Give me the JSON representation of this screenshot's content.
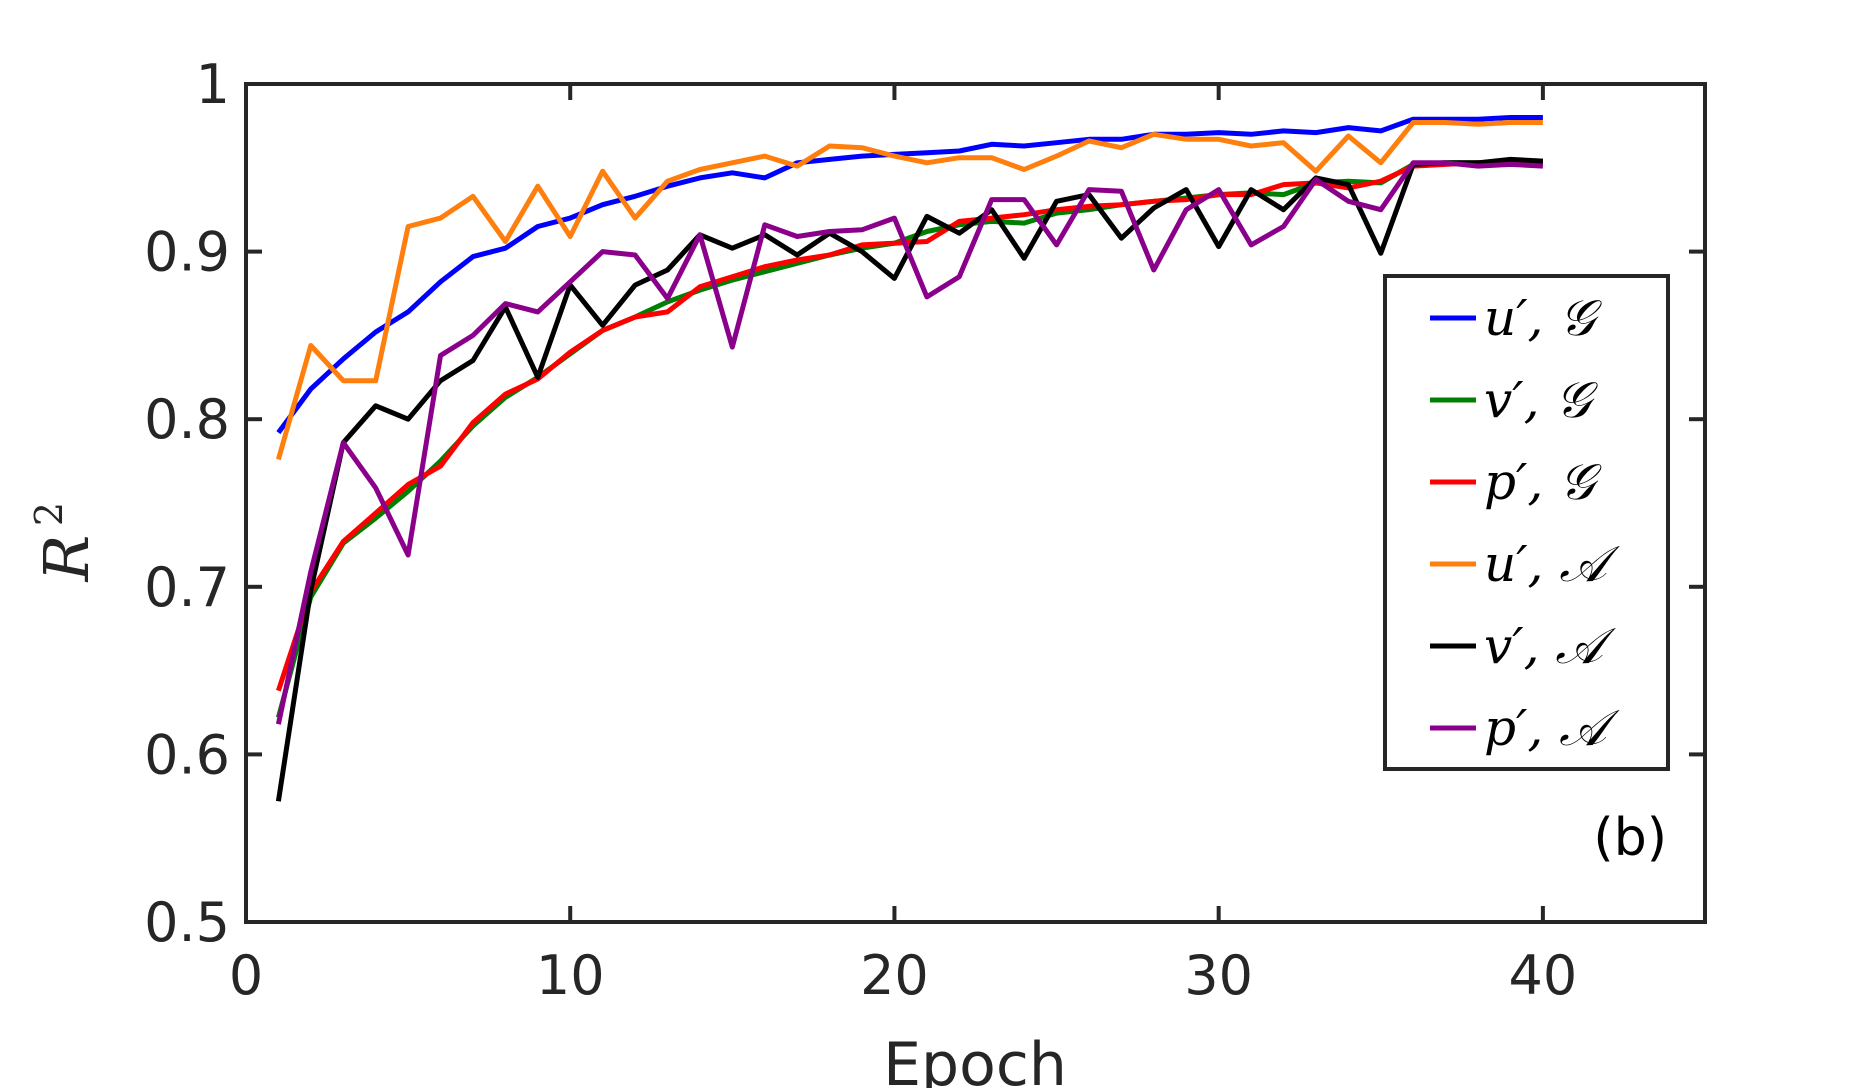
{
  "chart_data": {
    "type": "line",
    "xlabel": "Epoch",
    "ylabel": "R",
    "ylabel_superscript": "2",
    "annotation": "(b)",
    "xlim": [
      0,
      45
    ],
    "ylim": [
      0.5,
      1
    ],
    "xticks": [
      0,
      10,
      20,
      30,
      40
    ],
    "xtick_labels": [
      "0",
      "10",
      "20",
      "30",
      "40"
    ],
    "yticks": [
      0.5,
      0.6,
      0.7,
      0.8,
      0.9,
      1
    ],
    "ytick_labels": [
      "0.5",
      "0.6",
      "0.7",
      "0.8",
      "0.9",
      "1"
    ],
    "grid": false,
    "legend_position": "right",
    "x": [
      1,
      2,
      3,
      4,
      5,
      6,
      7,
      8,
      9,
      10,
      11,
      12,
      13,
      14,
      15,
      16,
      17,
      18,
      19,
      20,
      21,
      22,
      23,
      24,
      25,
      26,
      27,
      28,
      29,
      30,
      31,
      32,
      33,
      34,
      35,
      36,
      37,
      38,
      39,
      40
    ],
    "series": [
      {
        "name": "u′, 𝒢",
        "color": "#0000ff",
        "values": [
          0.792,
          0.818,
          0.836,
          0.852,
          0.864,
          0.882,
          0.897,
          0.902,
          0.915,
          0.92,
          0.928,
          0.933,
          0.939,
          0.944,
          0.947,
          0.944,
          0.953,
          0.955,
          0.957,
          0.958,
          0.959,
          0.96,
          0.964,
          0.963,
          0.965,
          0.967,
          0.967,
          0.97,
          0.97,
          0.971,
          0.97,
          0.972,
          0.971,
          0.974,
          0.972,
          0.979,
          0.979,
          0.979,
          0.98,
          0.98
        ]
      },
      {
        "name": "v′, 𝒢",
        "color": "#008000",
        "values": [
          0.622,
          0.694,
          0.726,
          0.741,
          0.757,
          0.775,
          0.796,
          0.813,
          0.825,
          0.839,
          0.853,
          0.861,
          0.87,
          0.877,
          0.883,
          0.888,
          0.893,
          0.898,
          0.902,
          0.905,
          0.912,
          0.916,
          0.918,
          0.917,
          0.923,
          0.925,
          0.928,
          0.93,
          0.932,
          0.934,
          0.935,
          0.934,
          0.941,
          0.942,
          0.941,
          0.952,
          0.953,
          0.953,
          0.954,
          0.953
        ]
      },
      {
        "name": "p′, 𝒢",
        "color": "#ff0000",
        "values": [
          0.638,
          0.697,
          0.727,
          0.744,
          0.761,
          0.772,
          0.798,
          0.815,
          0.824,
          0.84,
          0.853,
          0.861,
          0.864,
          0.879,
          0.885,
          0.891,
          0.895,
          0.898,
          0.904,
          0.905,
          0.906,
          0.918,
          0.92,
          0.922,
          0.925,
          0.927,
          0.928,
          0.93,
          0.931,
          0.934,
          0.934,
          0.94,
          0.941,
          0.938,
          0.942,
          0.951,
          0.952,
          0.953,
          0.954,
          0.954
        ]
      },
      {
        "name": "u′, 𝒜",
        "color": "#ff7f0e",
        "values": [
          0.776,
          0.844,
          0.823,
          0.823,
          0.915,
          0.92,
          0.933,
          0.906,
          0.939,
          0.909,
          0.948,
          0.92,
          0.942,
          0.949,
          0.953,
          0.957,
          0.951,
          0.963,
          0.962,
          0.957,
          0.953,
          0.956,
          0.956,
          0.949,
          0.957,
          0.966,
          0.962,
          0.97,
          0.967,
          0.967,
          0.963,
          0.965,
          0.948,
          0.969,
          0.953,
          0.977,
          0.977,
          0.976,
          0.977,
          0.977
        ]
      },
      {
        "name": "v′, 𝒜",
        "color": "#000000",
        "values": [
          0.572,
          0.698,
          0.786,
          0.808,
          0.8,
          0.823,
          0.835,
          0.867,
          0.825,
          0.88,
          0.856,
          0.88,
          0.889,
          0.91,
          0.902,
          0.91,
          0.898,
          0.911,
          0.9,
          0.884,
          0.921,
          0.911,
          0.925,
          0.896,
          0.93,
          0.934,
          0.908,
          0.926,
          0.937,
          0.903,
          0.937,
          0.925,
          0.944,
          0.94,
          0.899,
          0.952,
          0.953,
          0.953,
          0.955,
          0.954
        ]
      },
      {
        "name": "p′, 𝒜",
        "color": "#8b008b",
        "values": [
          0.618,
          0.709,
          0.786,
          0.759,
          0.719,
          0.838,
          0.85,
          0.869,
          0.864,
          0.882,
          0.9,
          0.898,
          0.872,
          0.91,
          0.843,
          0.916,
          0.909,
          0.912,
          0.913,
          0.92,
          0.873,
          0.885,
          0.931,
          0.931,
          0.904,
          0.937,
          0.936,
          0.889,
          0.925,
          0.937,
          0.904,
          0.915,
          0.943,
          0.93,
          0.925,
          0.953,
          0.953,
          0.951,
          0.952,
          0.951
        ]
      }
    ]
  }
}
